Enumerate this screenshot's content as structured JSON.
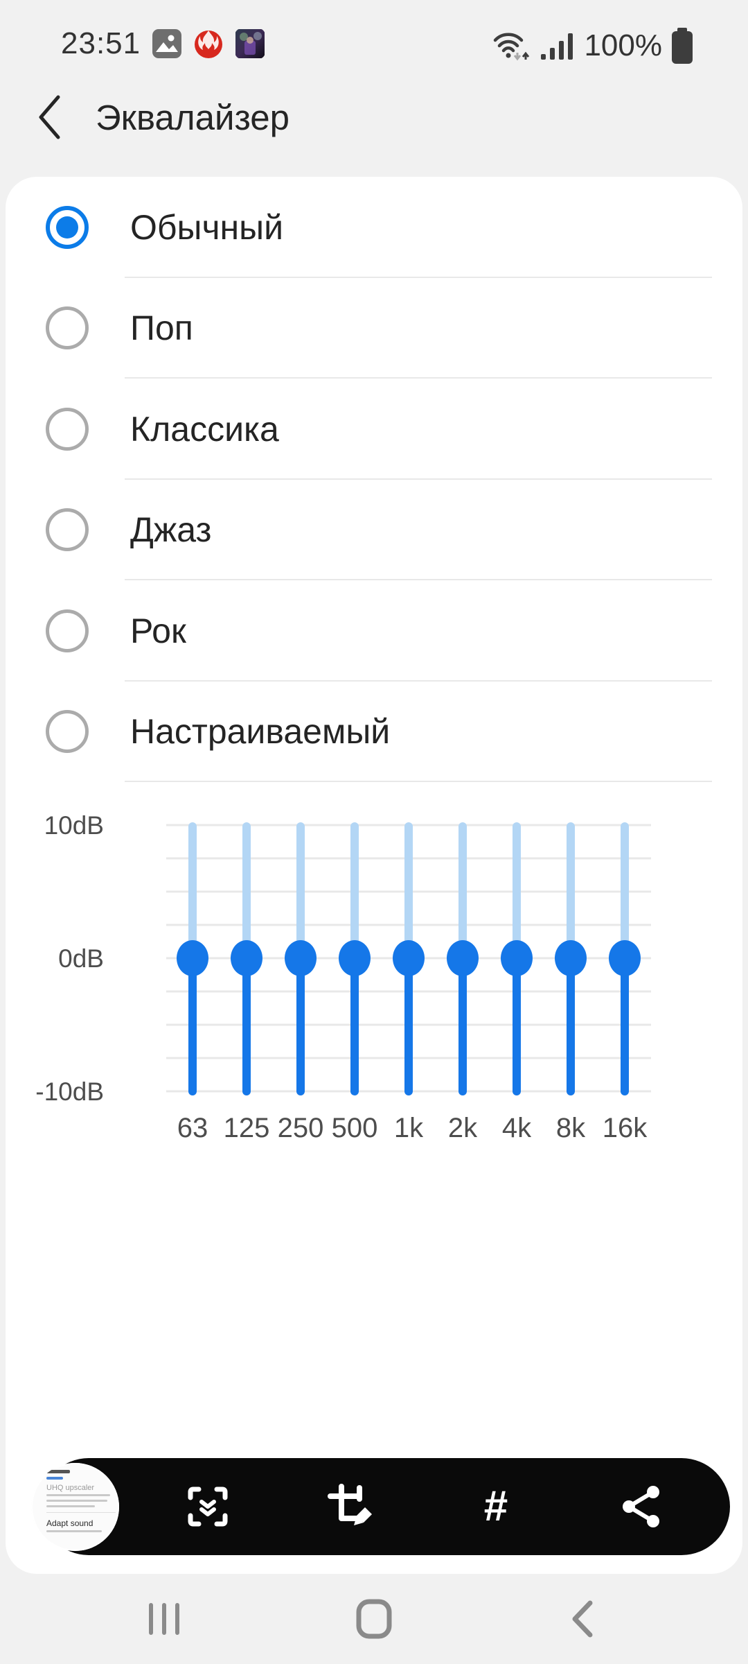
{
  "status_bar": {
    "time": "23:51",
    "battery_text": "100%",
    "notification_icons": [
      "gallery-icon",
      "antutu-icon",
      "game-icon"
    ],
    "system_icons": [
      "wifi-icon",
      "signal-icon",
      "battery-icon"
    ]
  },
  "header": {
    "title": "Эквалайзер"
  },
  "presets": {
    "items": [
      {
        "label": "Обычный",
        "selected": true
      },
      {
        "label": "Поп",
        "selected": false
      },
      {
        "label": "Классика",
        "selected": false
      },
      {
        "label": "Джаз",
        "selected": false
      },
      {
        "label": "Рок",
        "selected": false
      },
      {
        "label": "Настраиваемый",
        "selected": false
      }
    ]
  },
  "chart_data": {
    "type": "bar",
    "subtype": "equalizer-vertical-sliders",
    "categories": [
      "63",
      "125",
      "250",
      "500",
      "1k",
      "2k",
      "4k",
      "8k",
      "16k"
    ],
    "values": [
      0,
      0,
      0,
      0,
      0,
      0,
      0,
      0,
      0
    ],
    "unit": "dB",
    "ylim": [
      -10,
      10
    ],
    "yticks": [
      {
        "value": 10,
        "label": "10dB"
      },
      {
        "value": 0,
        "label": "0dB"
      },
      {
        "value": -10,
        "label": "-10dB"
      }
    ],
    "gridline_step_db": 2.5,
    "grid": true,
    "legend": "none",
    "colors": {
      "track_above": "#b3d6f5",
      "track_below": "#1577e8",
      "knob": "#1577e8",
      "gridline": "#e8e8e8",
      "tick_text": "#4d4d4d"
    }
  },
  "capture_toolbar": {
    "hash_glyph": "#",
    "thumbnail_heading_1": "UHQ upscaler",
    "thumbnail_heading_2": "Adapt sound",
    "icons": [
      "scroll-capture-icon",
      "edit-crop-icon",
      "hashtag-icon",
      "share-icon"
    ]
  },
  "nav_bar": {
    "icons": [
      "recents-icon",
      "home-icon",
      "back-icon"
    ]
  },
  "colors": {
    "accent_blue": "#1577e8",
    "radio_selected_blue": "#0c7ce8",
    "background_gray": "#f1f1f1",
    "sheet_white": "#ffffff",
    "toolbar_black": "#0a0a0a",
    "text_primary": "#242424",
    "nav_icon_gray": "#8a8a8a"
  }
}
